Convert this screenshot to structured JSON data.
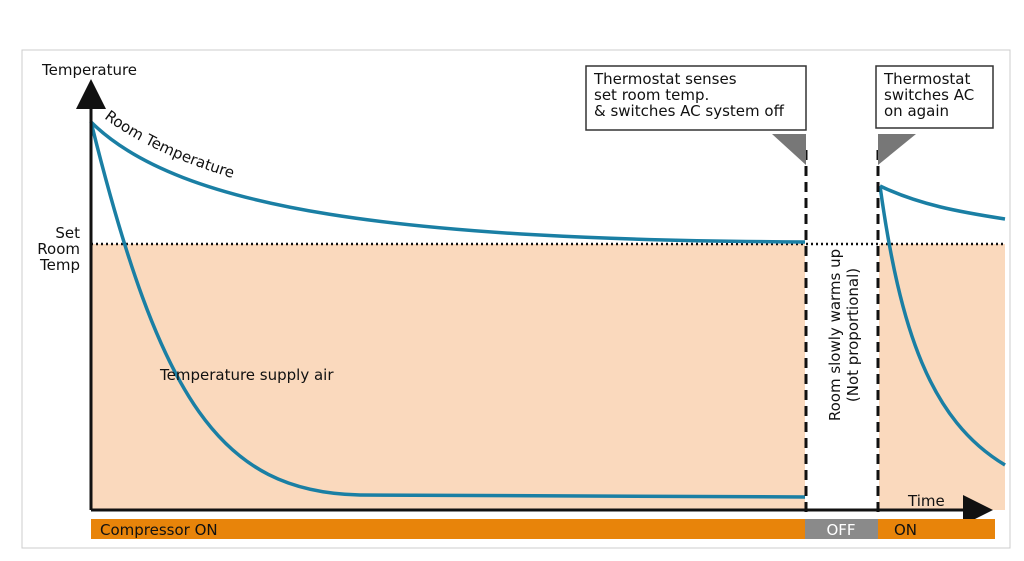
{
  "y_axis_label": "Temperature",
  "x_axis_label": "Time",
  "set_point_label": [
    "Set",
    "Room",
    "Temp"
  ],
  "room_curve_label": "Room Temperature",
  "supply_curve_label": "Temperature supply air",
  "callout_off": [
    "Thermostat senses",
    "set room temp.",
    "& switches AC system off"
  ],
  "callout_on": [
    "Thermostat",
    "switches AC",
    "on again"
  ],
  "gap_note": [
    "Room slowly warms up",
    "(Not proportional)"
  ],
  "compressor_bar": {
    "on_1": "Compressor ON",
    "off": "OFF",
    "on_2": "ON"
  }
}
